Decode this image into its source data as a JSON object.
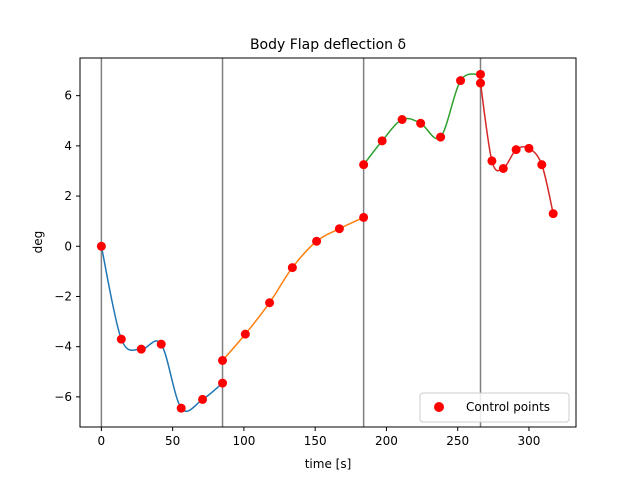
{
  "chart_data": {
    "type": "line",
    "title": "Body Flap deflection δ",
    "xlabel": "time [s]",
    "ylabel": "deg",
    "xlim": [
      -15,
      333
    ],
    "ylim": [
      -7.2,
      7.5
    ],
    "xticks": [
      0,
      50,
      100,
      150,
      200,
      250,
      300
    ],
    "yticks": [
      -6,
      -4,
      -2,
      0,
      2,
      4,
      6
    ],
    "xtick_labels": [
      "0",
      "50",
      "100",
      "150",
      "200",
      "250",
      "300"
    ],
    "ytick_labels": [
      "−6",
      "−4",
      "−2",
      "0",
      "2",
      "4",
      "6"
    ],
    "phase_boundaries": [
      0,
      85,
      184,
      266
    ],
    "series": [
      {
        "color": "#1f77b4",
        "points": [
          [
            0,
            0
          ],
          [
            14,
            -3.7
          ],
          [
            28,
            -4.1
          ],
          [
            42,
            -3.9
          ],
          [
            56,
            -6.45
          ],
          [
            71,
            -6.1
          ],
          [
            85,
            -5.45
          ]
        ]
      },
      {
        "color": "#ff7f0e",
        "points": [
          [
            85,
            -4.55
          ],
          [
            101,
            -3.5
          ],
          [
            118,
            -2.25
          ],
          [
            134,
            -0.85
          ],
          [
            151,
            0.2
          ],
          [
            167,
            0.7
          ],
          [
            184,
            1.15
          ]
        ]
      },
      {
        "color": "#2ca02c",
        "points": [
          [
            184,
            3.25
          ],
          [
            197,
            4.2
          ],
          [
            211,
            5.05
          ],
          [
            224,
            4.9
          ],
          [
            238,
            4.35
          ],
          [
            252,
            6.6
          ],
          [
            266,
            6.85
          ]
        ]
      },
      {
        "color": "#d62728",
        "points": [
          [
            266,
            6.5
          ],
          [
            274,
            3.4
          ],
          [
            282,
            3.1
          ],
          [
            291,
            3.85
          ],
          [
            300,
            3.9
          ],
          [
            309,
            3.25
          ],
          [
            317,
            1.3
          ]
        ]
      }
    ],
    "control_points": {
      "name": "Control points",
      "color": "#ff0000"
    },
    "legend": {
      "position": "lower right",
      "label": "Control points"
    },
    "grid": false
  }
}
